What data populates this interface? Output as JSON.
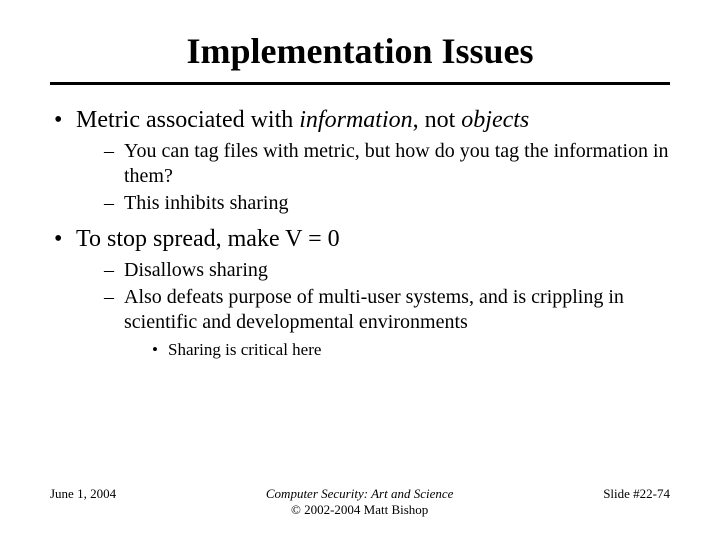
{
  "title": "Implementation Issues",
  "bullets": {
    "b1": {
      "pre": "Metric associated with ",
      "em1": "information",
      "mid": ", not ",
      "em2": "objects",
      "sub": {
        "s1": "You can tag files with metric, but how do you tag the information in them?",
        "s2": "This inhibits sharing"
      }
    },
    "b2": {
      "text": "To stop spread, make V = 0",
      "sub": {
        "s1": "Disallows sharing",
        "s2": "Also defeats purpose of multi-user systems, and is crippling in scientific and developmental environments",
        "sub3": {
          "s1": "Sharing is critical here"
        }
      }
    }
  },
  "footer": {
    "date": "June 1, 2004",
    "center1": "Computer Security: Art and Science",
    "center2": "© 2002-2004 Matt Bishop",
    "right": "Slide #22-74"
  }
}
